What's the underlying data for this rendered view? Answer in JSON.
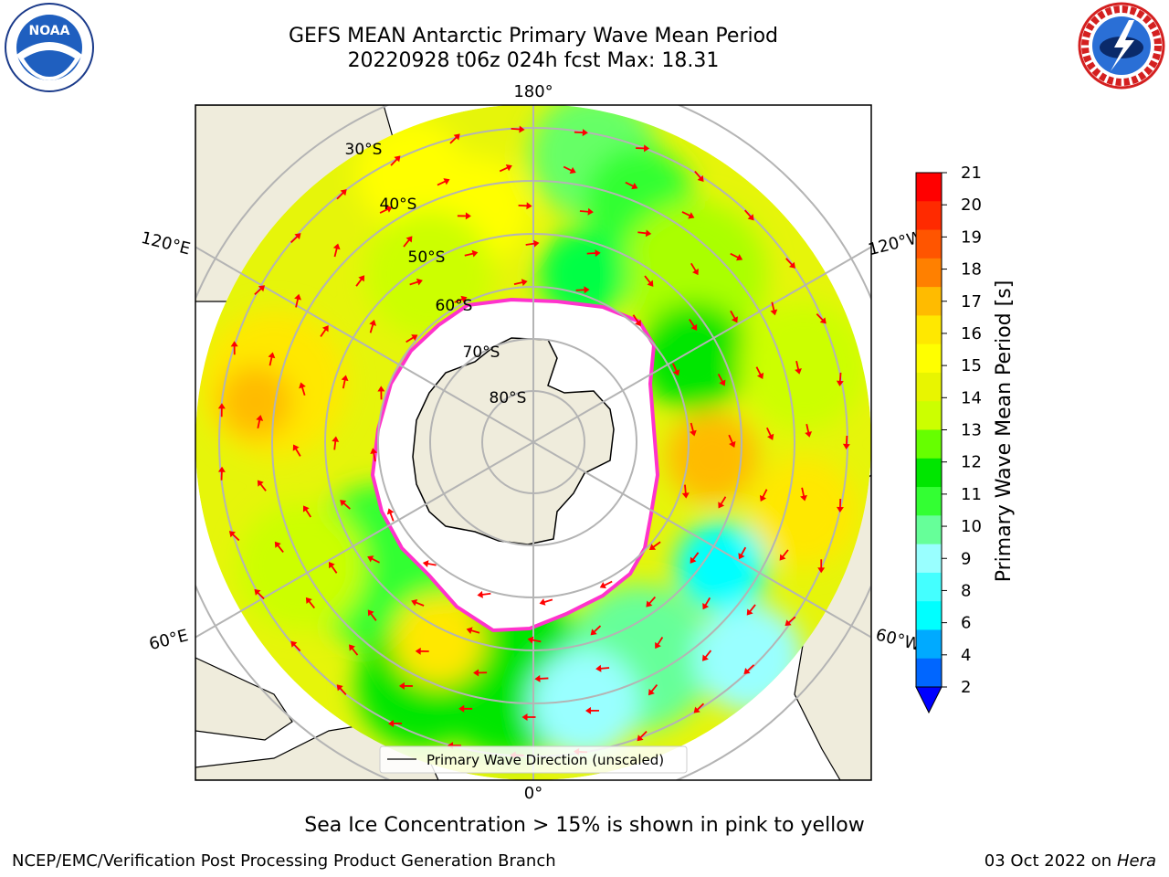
{
  "header": {
    "title_line1": "GEFS MEAN Antarctic Primary Wave Mean Period",
    "title_line2": "20220928 t06z 024h fcst   Max: 18.31"
  },
  "map": {
    "projection": "South Polar Stereographic",
    "lon_labels": {
      "top": "180°",
      "bottom": "0°",
      "upper_left": "120°E",
      "upper_right": "120°W",
      "lower_left": "60°E",
      "lower_right": "60°W"
    },
    "lat_labels": [
      "30°S",
      "40°S",
      "50°S",
      "60°S",
      "70°S",
      "80°S"
    ],
    "legend_label": "Primary Wave Direction (unscaled)"
  },
  "colorbar": {
    "label": "Primary Wave Mean Period [s]",
    "ticks": [
      "21",
      "20",
      "19",
      "18",
      "17",
      "16",
      "15",
      "14",
      "13",
      "12",
      "11",
      "10",
      "9",
      "8",
      "6",
      "4",
      "2"
    ],
    "colors_top_to_bottom": [
      "#ff0000",
      "#ff2a00",
      "#ff5500",
      "#ff8000",
      "#ffbb00",
      "#ffe800",
      "#ffff00",
      "#e8f500",
      "#ccff00",
      "#66ff00",
      "#00e600",
      "#33ff33",
      "#66ff99",
      "#99ffff",
      "#44ffff",
      "#00ffff",
      "#00aaff",
      "#0066ff"
    ],
    "extend_color": "#0000ff"
  },
  "caption": "Sea Ice Concentration > 15% is shown in pink to yellow",
  "footer": {
    "left": "NCEP/EMC/Verification Post Processing Product Generation Branch",
    "right_date": "03 Oct 2022 on ",
    "right_machine": "Hera"
  },
  "logos": {
    "noaa_text": "NOAA",
    "nws_ring_text": "NATIONAL WEATHER SERVICE"
  },
  "colors": {
    "land": "#efecdc",
    "ice_edge": "#ff33cc",
    "arrow": "#ff0000",
    "grid": "#b4b4b4"
  }
}
